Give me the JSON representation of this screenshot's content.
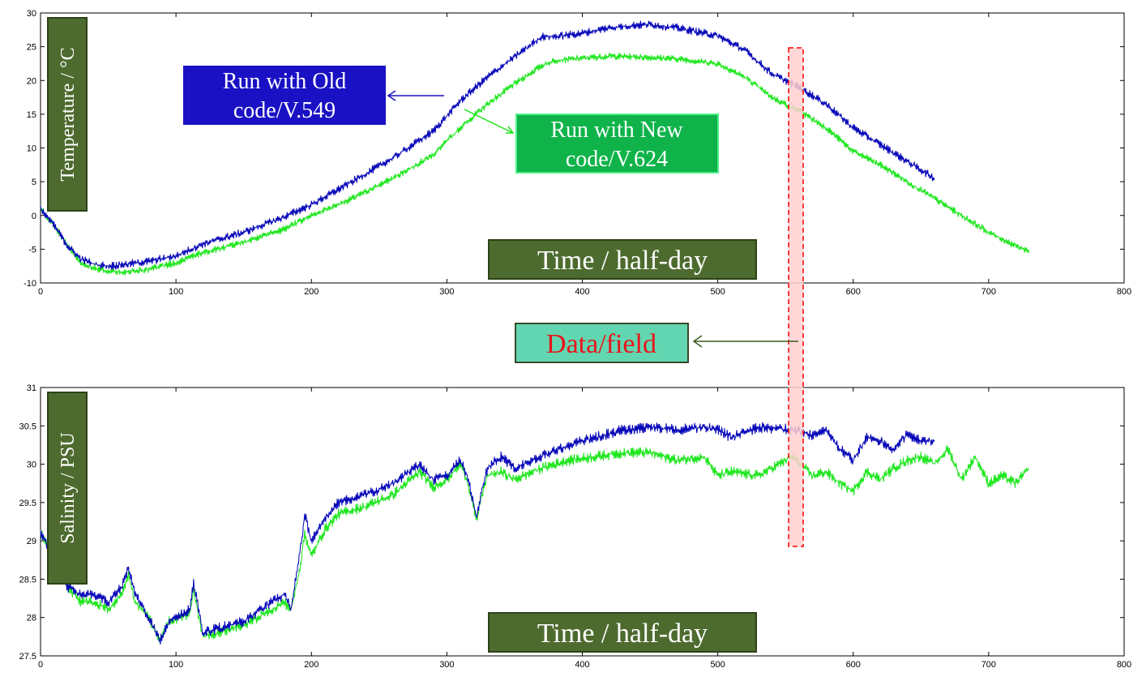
{
  "colors": {
    "old_series": "#0000b8",
    "new_series": "#19e619",
    "label_box_olive": "#4d6b2e",
    "label_box_blue": "#1a10c4",
    "label_box_green": "#0fb34a",
    "data_box_fill": "#62d6b0",
    "data_box_text": "#e8141b",
    "highlight_fill": "#ffd0d0",
    "highlight_stroke": "#ff0000"
  },
  "annotations": {
    "old_run": [
      "Run with Old",
      "code/V.549"
    ],
    "new_run": [
      "Run with New",
      "code/V.624"
    ],
    "data_field": "Data/field",
    "highlight_x": [
      553,
      563
    ]
  },
  "chart_data": [
    {
      "type": "line",
      "ylabel": "Temperature / °C",
      "xlabel": "Time / half-day",
      "xlim": [
        0,
        800
      ],
      "ylim": [
        -10,
        30
      ],
      "xticks": [
        "0",
        "100",
        "200",
        "300",
        "400",
        "500",
        "600",
        "700",
        "800"
      ],
      "yticks": [
        "-10",
        "-5",
        "0",
        "5",
        "10",
        "15",
        "20",
        "25",
        "30"
      ],
      "series": [
        {
          "key": "old",
          "x": [
            0,
            10,
            20,
            30,
            40,
            50,
            60,
            80,
            100,
            120,
            150,
            180,
            200,
            230,
            260,
            290,
            310,
            330,
            350,
            370,
            380,
            400,
            420,
            440,
            450,
            470,
            500,
            520,
            540,
            560,
            580,
            600,
            620,
            640,
            660
          ],
          "y": [
            1,
            -1.5,
            -4.5,
            -6.5,
            -7.2,
            -7.5,
            -7.3,
            -6.8,
            -6,
            -4.2,
            -2.5,
            -0.2,
            1.6,
            5,
            8.5,
            12.5,
            17,
            20.5,
            23.5,
            26.5,
            26.5,
            27,
            27.8,
            28.2,
            28.3,
            27.8,
            26.6,
            24.5,
            21,
            19,
            16.5,
            13,
            10.5,
            8,
            5.5
          ],
          "noise": 0.35
        },
        {
          "key": "new",
          "x": [
            0,
            10,
            20,
            30,
            40,
            50,
            60,
            80,
            100,
            120,
            150,
            180,
            200,
            230,
            260,
            290,
            310,
            330,
            350,
            370,
            380,
            400,
            420,
            440,
            450,
            470,
            500,
            520,
            540,
            560,
            580,
            600,
            620,
            640,
            660,
            680,
            700,
            720,
            730
          ],
          "y": [
            1,
            -1.5,
            -4.5,
            -7,
            -7.8,
            -8.3,
            -8.4,
            -8,
            -7,
            -5.5,
            -4,
            -2,
            0,
            2.5,
            5.5,
            9,
            13,
            16.5,
            19.5,
            22.2,
            23,
            23.3,
            23.6,
            23.5,
            23.4,
            23.2,
            22.5,
            20.5,
            17.5,
            15.5,
            13,
            9.5,
            7.5,
            5,
            2.5,
            0,
            -2.5,
            -4.5,
            -5.3
          ],
          "noise": 0.3
        }
      ]
    },
    {
      "type": "line",
      "ylabel": "Salinity / PSU",
      "xlabel": "Time / half-day",
      "xlim": [
        0,
        800
      ],
      "ylim": [
        27.5,
        31
      ],
      "xticks": [
        "0",
        "100",
        "200",
        "300",
        "400",
        "500",
        "600",
        "700",
        "800"
      ],
      "yticks": [
        "27.5",
        "28",
        "28.5",
        "29",
        "29.5",
        "30",
        "30.5",
        "31"
      ],
      "series": [
        {
          "key": "old",
          "x": [
            0,
            10,
            20,
            30,
            40,
            50,
            60,
            65,
            70,
            80,
            88,
            95,
            110,
            113,
            120,
            130,
            150,
            170,
            180,
            185,
            192,
            195,
            200,
            210,
            220,
            240,
            260,
            280,
            290,
            300,
            310,
            315,
            322,
            325,
            330,
            340,
            350,
            370,
            390,
            410,
            430,
            450,
            470,
            490,
            500,
            510,
            530,
            555,
            570,
            580,
            590,
            600,
            610,
            620,
            630,
            640,
            650,
            660
          ],
          "y": [
            29.1,
            28.8,
            28.4,
            28.3,
            28.3,
            28.2,
            28.4,
            28.65,
            28.3,
            28.0,
            27.7,
            27.95,
            28.1,
            28.45,
            27.8,
            27.85,
            27.95,
            28.2,
            28.3,
            28.1,
            28.9,
            29.35,
            29.0,
            29.3,
            29.5,
            29.6,
            29.75,
            30.0,
            29.8,
            29.85,
            30.05,
            29.85,
            29.3,
            29.6,
            29.95,
            30.1,
            29.95,
            30.1,
            30.25,
            30.35,
            30.45,
            30.48,
            30.45,
            30.48,
            30.45,
            30.35,
            30.48,
            30.45,
            30.38,
            30.45,
            30.2,
            30.05,
            30.35,
            30.3,
            30.2,
            30.4,
            30.3,
            30.3
          ],
          "noise": 0.04
        },
        {
          "key": "new",
          "x": [
            0,
            10,
            20,
            30,
            40,
            50,
            60,
            65,
            70,
            80,
            88,
            95,
            110,
            113,
            120,
            130,
            150,
            170,
            180,
            185,
            192,
            195,
            200,
            210,
            220,
            240,
            260,
            280,
            290,
            300,
            310,
            315,
            322,
            325,
            330,
            340,
            350,
            370,
            390,
            410,
            430,
            450,
            470,
            490,
            500,
            510,
            530,
            555,
            570,
            580,
            590,
            600,
            610,
            620,
            630,
            640,
            650,
            660,
            670,
            680,
            690,
            700,
            710,
            720,
            730
          ],
          "y": [
            29.1,
            28.8,
            28.4,
            28.2,
            28.2,
            28.1,
            28.3,
            28.55,
            28.2,
            28.0,
            27.7,
            27.95,
            28.05,
            28.35,
            27.75,
            27.8,
            27.9,
            28.1,
            28.2,
            28.1,
            28.7,
            29.1,
            28.8,
            29.15,
            29.35,
            29.45,
            29.6,
            29.9,
            29.7,
            29.8,
            30.0,
            29.8,
            29.25,
            29.55,
            29.85,
            29.9,
            29.8,
            29.95,
            30.05,
            30.1,
            30.15,
            30.15,
            30.05,
            30.1,
            29.85,
            29.9,
            29.85,
            30.1,
            29.85,
            29.9,
            29.75,
            29.65,
            29.9,
            29.8,
            29.95,
            30.05,
            30.1,
            30.0,
            30.2,
            29.8,
            30.1,
            29.75,
            29.85,
            29.75,
            29.95
          ],
          "noise": 0.04
        }
      ]
    }
  ]
}
